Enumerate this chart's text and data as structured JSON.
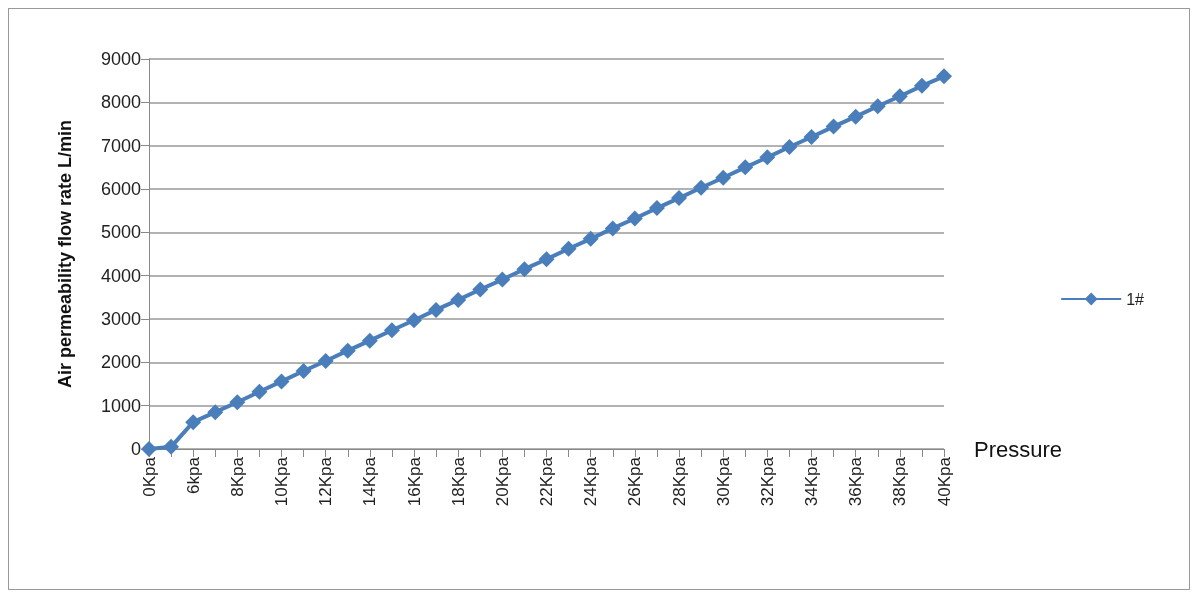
{
  "chart_data": {
    "type": "line",
    "xlabel": "Pressure",
    "ylabel": "Air permeability flow rate L/min",
    "categories": [
      "0Kpa",
      null,
      "6kpa",
      null,
      "8Kpa",
      null,
      "10Kpa",
      null,
      "12Kpa",
      null,
      "14Kpa",
      null,
      "16Kpa",
      null,
      "18Kpa",
      null,
      "20Kpa",
      null,
      "22Kpa",
      null,
      "24Kpa",
      null,
      "26Kpa",
      null,
      "28Kpa",
      null,
      "30Kpa",
      null,
      "32Kpa",
      null,
      "34Kpa",
      null,
      "36Kpa",
      null,
      "38Kpa",
      null,
      "40Kpa"
    ],
    "series": [
      {
        "name": "1#",
        "color": "#4a7ebb",
        "values": [
          0,
          50,
          620,
          850,
          1080,
          1320,
          1560,
          1800,
          2030,
          2270,
          2500,
          2740,
          2970,
          3210,
          3440,
          3680,
          3910,
          4150,
          4380,
          4620,
          4850,
          5090,
          5320,
          5560,
          5790,
          6030,
          6260,
          6500,
          6730,
          6970,
          7200,
          7440,
          7670,
          7910,
          8140,
          8380,
          8600
        ]
      }
    ],
    "ylim": [
      0,
      9000
    ],
    "yticks": [
      0,
      1000,
      2000,
      3000,
      4000,
      5000,
      6000,
      7000,
      8000,
      9000
    ],
    "grid": "y",
    "legend": "right",
    "marker": "diamond",
    "line_style": "solid"
  }
}
